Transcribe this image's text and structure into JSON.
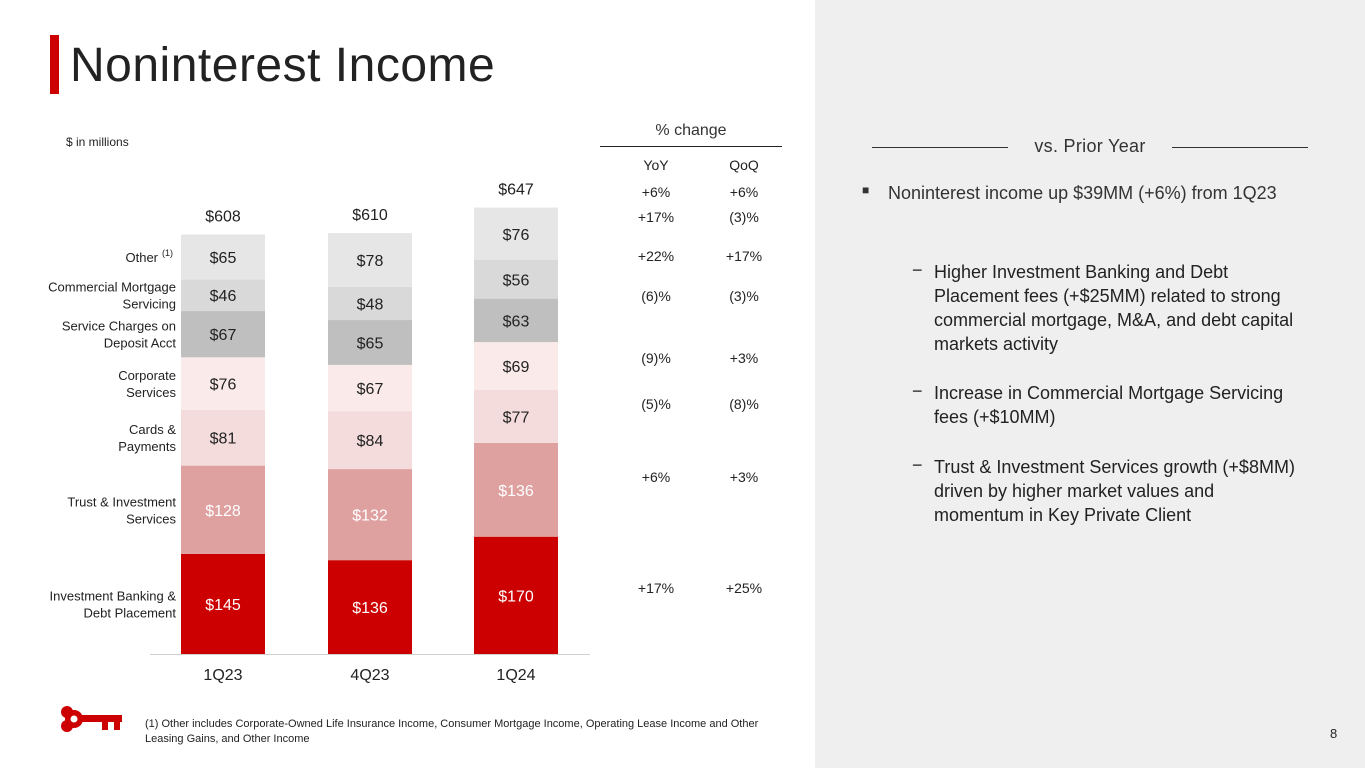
{
  "page": {
    "title": "Noninterest Income",
    "units_note": "$ in millions",
    "page_number": "8",
    "footnote": "(1) Other includes Corporate-Owned Life Insurance Income, Consumer Mortgage Income, Operating Lease Income and Other Leasing Gains, and Other Income"
  },
  "chart_data": {
    "type": "bar",
    "stacked": true,
    "categories": [
      "1Q23",
      "4Q23",
      "1Q24"
    ],
    "series": [
      {
        "name": "Investment Banking & Debt Placement",
        "values": [
          145,
          136,
          170
        ],
        "labels": [
          "$145",
          "$136",
          "$170"
        ],
        "color": "#cc0000",
        "label_color": "#ffffff"
      },
      {
        "name": "Trust & Investment Services",
        "values": [
          128,
          132,
          136
        ],
        "labels": [
          "$128",
          "$132",
          "$136"
        ],
        "color": "#dfa0a0",
        "label_color": "#ffffff"
      },
      {
        "name": "Cards & Payments",
        "values": [
          81,
          84,
          77
        ],
        "labels": [
          "$81",
          "$84",
          "$77"
        ],
        "color": "#f4dcdc",
        "label_color": "#222222"
      },
      {
        "name": "Corporate Services",
        "values": [
          76,
          67,
          69
        ],
        "labels": [
          "$76",
          "$67",
          "$69"
        ],
        "color": "#faeaea",
        "label_color": "#222222"
      },
      {
        "name": "Service Charges on Deposit Acct",
        "values": [
          67,
          65,
          63
        ],
        "labels": [
          "$67",
          "$65",
          "$63"
        ],
        "color": "#bfbfbf",
        "label_color": "#222222"
      },
      {
        "name": "Commercial Mortgage Servicing",
        "values": [
          46,
          48,
          56
        ],
        "labels": [
          "$46",
          "$48",
          "$56"
        ],
        "color": "#d9d9d9",
        "label_color": "#222222"
      },
      {
        "name": "Other",
        "values": [
          65,
          78,
          76
        ],
        "labels": [
          "$65",
          "$78",
          "$76"
        ],
        "color": "#e6e6e6",
        "label_color": "#222222"
      }
    ],
    "totals": [
      "$608",
      "$610",
      "$647"
    ],
    "row_labels": [
      {
        "lines": [
          "Investment Banking &",
          "Debt Placement"
        ]
      },
      {
        "lines": [
          "Trust & Investment",
          "Services"
        ]
      },
      {
        "lines": [
          "Cards &",
          "Payments"
        ]
      },
      {
        "lines": [
          "Corporate",
          "Services"
        ]
      },
      {
        "lines": [
          "Service Charges on",
          "Deposit Acct"
        ]
      },
      {
        "lines": [
          "Commercial Mortgage",
          "Servicing"
        ]
      },
      {
        "lines": [
          "Other"
        ],
        "superscript": "(1)"
      }
    ]
  },
  "pct_change": {
    "heading": "% change",
    "yoy_label": "YoY",
    "qoq_label": "QoQ",
    "total": {
      "yoy": "+6%",
      "qoq": "+6%"
    },
    "rows": [
      {
        "yoy": "+17%",
        "qoq": "+25%"
      },
      {
        "yoy": "+6%",
        "qoq": "+3%"
      },
      {
        "yoy": "(5)%",
        "qoq": "(8)%"
      },
      {
        "yoy": "(9)%",
        "qoq": "+3%"
      },
      {
        "yoy": "(6)%",
        "qoq": "(3)%"
      },
      {
        "yoy": "+22%",
        "qoq": "+17%"
      },
      {
        "yoy": "+17%",
        "qoq": "(3)%"
      }
    ]
  },
  "commentary": {
    "heading": "vs. Prior Year",
    "main_bullet": "Noninterest income up $39MM (+6%) from 1Q23",
    "sub_bullets": [
      "Higher Investment Banking and Debt Placement fees (+$25MM) related to strong commercial mortgage, M&A, and debt capital markets activity",
      "Increase in Commercial Mortgage Servicing fees (+$10MM)",
      "Trust & Investment Services growth (+$8MM) driven by higher market values and momentum in Key Private Client"
    ]
  },
  "colors": {
    "accent": "#cc0000",
    "panel_bg": "#efefef"
  }
}
